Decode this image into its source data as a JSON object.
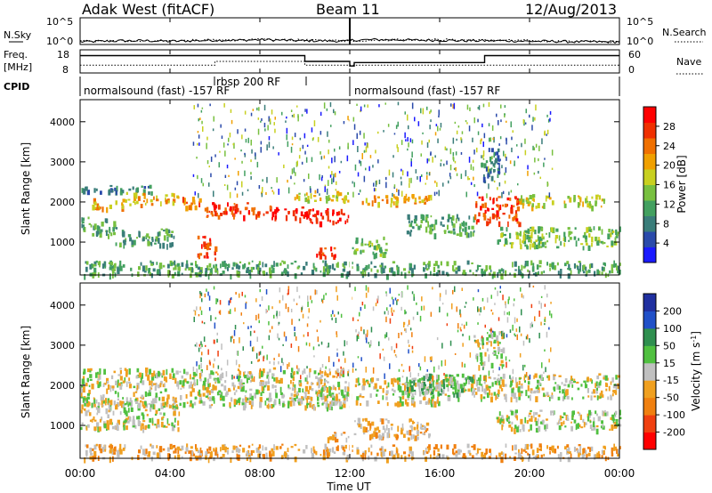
{
  "header": {
    "station": "Adak West (fitACF)",
    "beam": "Beam 11",
    "date": "12/Aug/2013"
  },
  "panels": {
    "nsky_label": "N.Sky",
    "nsearch_label": "N.Search",
    "freq_label": "Freq.",
    "freq_unit": "[MHz]",
    "nave_label": "Nave",
    "cpid_label": "CPID",
    "nsky_ticks": [
      "10^5",
      "10^0"
    ],
    "nsearch_ticks": [
      "10^5",
      "10^0"
    ],
    "freq_ticks": [
      "18",
      "8"
    ],
    "nave_ticks": [
      "60",
      "0"
    ]
  },
  "cpid": {
    "segments": [
      {
        "label": "normalsound (fast) -157 RF",
        "start_h": 0,
        "end_h": 12
      },
      {
        "label": "normalsound (fast) -157 RF",
        "start_h": 12,
        "end_h": 24
      }
    ],
    "overlay_label": "rbsp 200 RF"
  },
  "xaxis": {
    "label": "Time UT",
    "ticks": [
      "00:00",
      "04:00",
      "08:00",
      "12:00",
      "16:00",
      "20:00",
      "00:00"
    ],
    "range_h": [
      0,
      24
    ]
  },
  "yaxis": {
    "label_html": "Slant Range [km]",
    "ticks": [
      "1000",
      "2000",
      "3000",
      "4000"
    ],
    "range_km": [
      180,
      4550
    ]
  },
  "colorbars": {
    "power": {
      "label": "Power [dB]",
      "ticks": [
        "4",
        "8",
        "12",
        "16",
        "20",
        "24",
        "28"
      ],
      "colors": [
        "#1a1aff",
        "#2a4aaa",
        "#3a7d7a",
        "#43a060",
        "#78c040",
        "#c8d020",
        "#f0a000",
        "#f07000",
        "#f03000",
        "#ff0000"
      ]
    },
    "velocity": {
      "label": "Velocity [m s",
      "label_sup": "-1",
      "label_end": "]",
      "ticks": [
        "200",
        "100",
        "50",
        "15",
        "-15",
        "-50",
        "-100",
        "-200"
      ],
      "colors": [
        "#2030a0",
        "#2050c8",
        "#2f8f4f",
        "#50c040",
        "#c0c0c0",
        "#f0a020",
        "#f08010",
        "#f04010",
        "#ff0000"
      ]
    }
  },
  "chart_data": [
    {
      "type": "line",
      "title": "N.Sky / N.Search",
      "x_range_h": [
        0,
        24
      ],
      "series": [
        {
          "name": "N.Sky",
          "style": "solid",
          "x_h": [
            0,
            1,
            2,
            3,
            4,
            5,
            6,
            7,
            8,
            9,
            10,
            11,
            11.9,
            12.1,
            13,
            14,
            15,
            16,
            17,
            18,
            19,
            20,
            21,
            22,
            23,
            24
          ],
          "values_log10": [
            0.5,
            0.6,
            0.7,
            0.7,
            0.6,
            0.7,
            0.8,
            0.8,
            0.9,
            0.8,
            0.7,
            0.7,
            0.6,
            0.8,
            0.9,
            0.9,
            0.8,
            0.8,
            0.7,
            0.7,
            0.7,
            0.6,
            0.6,
            0.5,
            0.5,
            0.5
          ]
        },
        {
          "name": "N.Search",
          "style": "dotted",
          "x_h": [
            0,
            2,
            4,
            6,
            8,
            10,
            12,
            14,
            16,
            18,
            20,
            22,
            24
          ],
          "values_log10": [
            0.6,
            0.7,
            0.7,
            0.8,
            0.9,
            0.8,
            0.7,
            0.9,
            0.9,
            0.8,
            0.7,
            0.6,
            0.5
          ]
        }
      ]
    },
    {
      "type": "line",
      "title": "Freq. / Nave",
      "x_range_h": [
        0,
        24
      ],
      "series": [
        {
          "name": "Freq.",
          "style": "solid",
          "x_h": [
            0,
            10,
            10,
            12,
            12,
            12.2,
            12.2,
            18,
            18,
            24
          ],
          "values_mhz": [
            15.5,
            15.5,
            13,
            13,
            11,
            11,
            12.5,
            12.5,
            15.5,
            15.5
          ]
        },
        {
          "name": "Nave",
          "style": "dotted",
          "x_h": [
            0,
            6,
            6,
            10,
            10,
            24
          ],
          "values": [
            20,
            20,
            30,
            30,
            20,
            20
          ]
        }
      ]
    },
    {
      "type": "heatmap",
      "title": "Power",
      "x_range_h": [
        0,
        24
      ],
      "y_range_km": [
        180,
        4550
      ],
      "bands": [
        {
          "h0": 0.0,
          "h1": 3.2,
          "k0": 2250,
          "k1": 2450,
          "level": 2
        },
        {
          "h0": 0.5,
          "h1": 2.0,
          "k0": 1850,
          "k1": 2100,
          "level": 6
        },
        {
          "h0": 2.0,
          "h1": 4.4,
          "k0": 1950,
          "k1": 2250,
          "level": 6
        },
        {
          "h0": 4.4,
          "h1": 5.6,
          "k0": 1900,
          "k1": 2150,
          "level": 7
        },
        {
          "h0": 0.0,
          "h1": 1.6,
          "k0": 1200,
          "k1": 1650,
          "level": 3
        },
        {
          "h0": 1.5,
          "h1": 4.2,
          "k0": 950,
          "k1": 1350,
          "level": 3
        },
        {
          "h0": 5.2,
          "h1": 6.0,
          "k0": 600,
          "k1": 1200,
          "level": 8
        },
        {
          "h0": 5.5,
          "h1": 8.5,
          "k0": 1650,
          "k1": 2000,
          "level": 8
        },
        {
          "h0": 8.5,
          "h1": 10.0,
          "k0": 1600,
          "k1": 1900,
          "level": 9
        },
        {
          "h0": 10.0,
          "h1": 12.0,
          "k0": 1500,
          "k1": 1850,
          "level": 9
        },
        {
          "h0": 9.5,
          "h1": 12.0,
          "k0": 2050,
          "k1": 2300,
          "level": 5
        },
        {
          "h0": 10.5,
          "h1": 11.6,
          "k0": 650,
          "k1": 900,
          "level": 8
        },
        {
          "h0": 12.0,
          "h1": 13.6,
          "k0": 700,
          "k1": 1150,
          "level": 4
        },
        {
          "h0": 12.4,
          "h1": 15.6,
          "k0": 1950,
          "k1": 2200,
          "level": 6
        },
        {
          "h0": 14.5,
          "h1": 17.5,
          "k0": 1200,
          "k1": 1700,
          "level": 3
        },
        {
          "h0": 17.5,
          "h1": 19.5,
          "k0": 1500,
          "k1": 2150,
          "level": 8
        },
        {
          "h0": 17.8,
          "h1": 18.6,
          "k0": 2500,
          "k1": 3400,
          "level": 2
        },
        {
          "h0": 19.5,
          "h1": 23.5,
          "k0": 1900,
          "k1": 2200,
          "level": 5
        },
        {
          "h0": 18.5,
          "h1": 24.0,
          "k0": 900,
          "k1": 1400,
          "level": 4
        },
        {
          "h0": 0.0,
          "h1": 24.0,
          "k0": 200,
          "k1": 550,
          "level": 3
        }
      ]
    },
    {
      "type": "heatmap",
      "title": "Velocity",
      "x_range_h": [
        0,
        24
      ],
      "y_range_km": [
        180,
        4550
      ],
      "bands": [
        {
          "h0": 0.0,
          "h1": 12.0,
          "k0": 1500,
          "k1": 2450,
          "level": 4
        },
        {
          "h0": 0.0,
          "h1": 4.4,
          "k0": 950,
          "k1": 1650,
          "level": 4
        },
        {
          "h0": 9.8,
          "h1": 12.0,
          "k0": 1450,
          "k1": 1900,
          "level": 4
        },
        {
          "h0": 11.0,
          "h1": 12.0,
          "k0": 650,
          "k1": 900,
          "level": 5
        },
        {
          "h0": 12.2,
          "h1": 16.0,
          "k0": 1550,
          "k1": 2200,
          "level": 4
        },
        {
          "h0": 12.0,
          "h1": 15.5,
          "k0": 700,
          "k1": 1200,
          "level": 5
        },
        {
          "h0": 16.0,
          "h1": 24.0,
          "k0": 1700,
          "k1": 2300,
          "level": 4
        },
        {
          "h0": 17.5,
          "h1": 18.8,
          "k0": 2500,
          "k1": 3400,
          "level": 4
        },
        {
          "h0": 18.5,
          "h1": 24.0,
          "k0": 900,
          "k1": 1400,
          "level": 4
        },
        {
          "h0": 14.5,
          "h1": 17.5,
          "k0": 1800,
          "k1": 2300,
          "level": 3
        },
        {
          "h0": 0.0,
          "h1": 24.0,
          "k0": 200,
          "k1": 550,
          "level": 5
        }
      ]
    }
  ]
}
